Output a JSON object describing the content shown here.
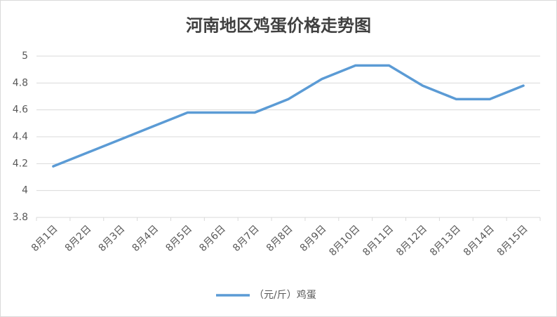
{
  "chart_data": {
    "type": "line",
    "title": "河南地区鸡蛋价格走势图",
    "categories": [
      "8月1日",
      "8月2日",
      "8月3日",
      "8月4日",
      "8月5日",
      "8月6日",
      "8月7日",
      "8月8日",
      "8月9日",
      "8月10日",
      "8月11日",
      "8月12日",
      "8月13日",
      "8月14日",
      "8月15日"
    ],
    "series": [
      {
        "name": "（元/斤）鸡蛋",
        "color": "#5b9bd5",
        "values": [
          4.18,
          4.28,
          4.38,
          4.48,
          4.58,
          4.58,
          4.58,
          4.68,
          4.83,
          4.93,
          4.93,
          4.78,
          4.68,
          4.68,
          4.78
        ]
      }
    ],
    "ylim": [
      3.8,
      5
    ],
    "yticks": [
      3.8,
      4,
      4.2,
      4.4,
      4.6,
      4.8,
      5
    ],
    "grid": true,
    "legend": "bottom"
  }
}
